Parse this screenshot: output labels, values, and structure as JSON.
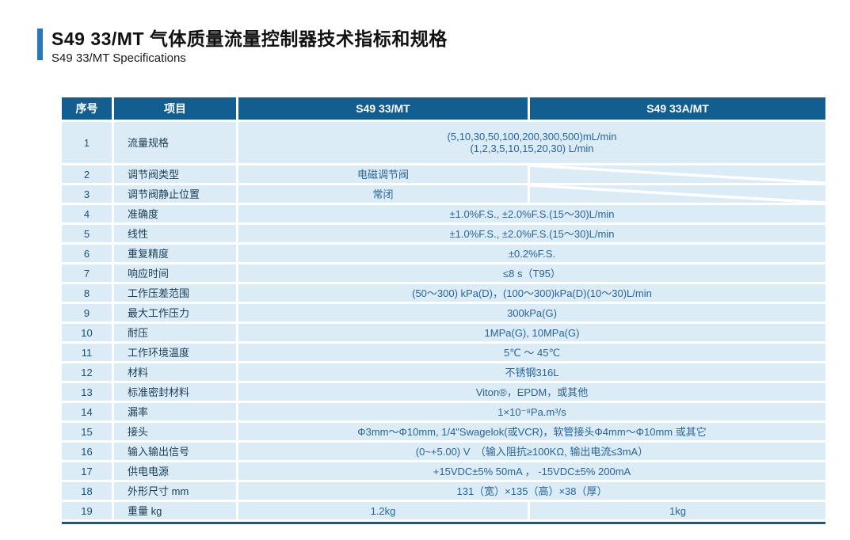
{
  "header": {
    "title_cn": "S49 33/MT 气体质量流量控制器技术指标和规格",
    "title_en": "S49 33/MT  Specifications"
  },
  "colors": {
    "accent": "#2878BE",
    "table_header_bg": "#135E90",
    "cell_bg": "#DBECF7",
    "value_text": "#2A6398",
    "item_text": "#1A3C55",
    "bottom_rule": "#0F5C94"
  },
  "table": {
    "columns": [
      "序号",
      "项目",
      "S49 33/MT",
      "S49 33A/MT"
    ],
    "na_marker": "diagonal-slash",
    "rows": [
      {
        "no": "1",
        "item": "流量规格",
        "type": "merged",
        "tall": true,
        "value": "(5,10,30,50,100,200,300,500)mL/min\n(1,2,3,5,10,15,20,30)  L/min"
      },
      {
        "no": "2",
        "item": "调节阀类型",
        "type": "na",
        "value": "电磁调节阀"
      },
      {
        "no": "3",
        "item": "调节阀静止位置",
        "type": "na",
        "value": "常闭"
      },
      {
        "no": "4",
        "item": "准确度",
        "type": "merged",
        "value": "±1.0%F.S., ±2.0%F.S.(15～30)L/min"
      },
      {
        "no": "5",
        "item": "线性",
        "type": "merged",
        "value": "±1.0%F.S., ±2.0%F.S.(15～30)L/min"
      },
      {
        "no": "6",
        "item": "重复精度",
        "type": "merged",
        "value": "±0.2%F.S."
      },
      {
        "no": "7",
        "item": "响应时间",
        "type": "merged",
        "value": "≤8 s（T95）"
      },
      {
        "no": "8",
        "item": "工作压差范围",
        "type": "merged",
        "value": "(50～300) kPa(D)，(100～300)kPa(D)(10～30)L/min"
      },
      {
        "no": "9",
        "item": "最大工作压力",
        "type": "merged",
        "value": "300kPa(G)"
      },
      {
        "no": "10",
        "item": "耐压",
        "type": "merged",
        "value": "1MPa(G), 10MPa(G)"
      },
      {
        "no": "11",
        "item": "工作环境温度",
        "type": "merged",
        "value": "5℃ ～ 45℃"
      },
      {
        "no": "12",
        "item": "材料",
        "type": "merged",
        "value": "不锈钢316L"
      },
      {
        "no": "13",
        "item": "标准密封材料",
        "type": "merged",
        "value": "Viton®，EPDM，或其他"
      },
      {
        "no": "14",
        "item": "漏率",
        "type": "merged",
        "value": "1×10⁻⁸Pa.m³/s"
      },
      {
        "no": "15",
        "item": "接头",
        "type": "merged",
        "value": "Φ3mm～Φ10mm, 1/4\"Swagelok(或VCR)，软管接头Φ4mm～Φ10mm  或其它"
      },
      {
        "no": "16",
        "item": "输入输出信号",
        "type": "merged",
        "value": "(0~+5.00) V　（输入阻抗≥100KΩ, 输出电流≤3mA）"
      },
      {
        "no": "17",
        "item": "供电电源",
        "type": "merged",
        "value": "+15VDC±5% 50mA ， -15VDC±5% 200mA"
      },
      {
        "no": "18",
        "item": "外形尺寸 mm",
        "type": "merged",
        "value": "131（宽）×135（高）×38（厚）"
      },
      {
        "no": "19",
        "item": "重量 kg",
        "type": "split",
        "value_a": "1.2kg",
        "value_b": "1kg"
      }
    ]
  }
}
